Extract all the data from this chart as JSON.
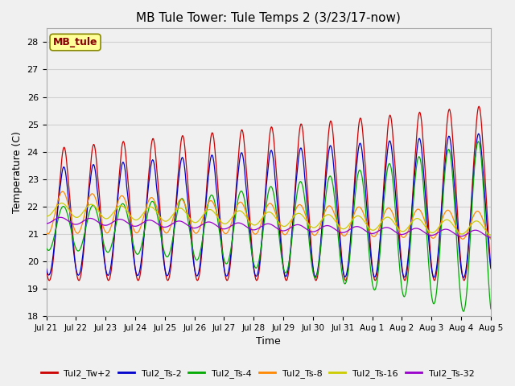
{
  "title": "MB Tule Tower: Tule Temps 2 (3/23/17-now)",
  "xlabel": "Time",
  "ylabel": "Temperature (C)",
  "ylim": [
    18.0,
    28.5
  ],
  "yticks": [
    18.0,
    19.0,
    20.0,
    21.0,
    22.0,
    23.0,
    24.0,
    25.0,
    26.0,
    27.0,
    28.0
  ],
  "xtick_labels": [
    "Jul 21",
    "Jul 22",
    "Jul 23",
    "Jul 24",
    "Jul 25",
    "Jul 26",
    "Jul 27",
    "Jul 28",
    "Jul 29",
    "Jul 30",
    "Jul 31",
    "Aug 1",
    "Aug 2",
    "Aug 3",
    "Aug 4",
    "Aug 5"
  ],
  "series": [
    {
      "name": "Tul2_Tw+2",
      "color": "#cc0000"
    },
    {
      "name": "Tul2_Ts-2",
      "color": "#0000cc"
    },
    {
      "name": "Tul2_Ts-4",
      "color": "#00aa00"
    },
    {
      "name": "Tul2_Ts-8",
      "color": "#ff8800"
    },
    {
      "name": "Tul2_Ts-16",
      "color": "#cccc00"
    },
    {
      "name": "Tul2_Ts-32",
      "color": "#9900cc"
    }
  ],
  "legend_box_facecolor": "#ffff99",
  "legend_box_edgecolor": "#888800",
  "legend_box_text": "MB_tule",
  "legend_box_text_color": "#880000",
  "grid_color": "#d0d0d0",
  "background_color": "#f0f0f0",
  "title_fontsize": 11,
  "axis_fontsize": 9,
  "tick_fontsize": 8,
  "legend_fontsize": 8
}
